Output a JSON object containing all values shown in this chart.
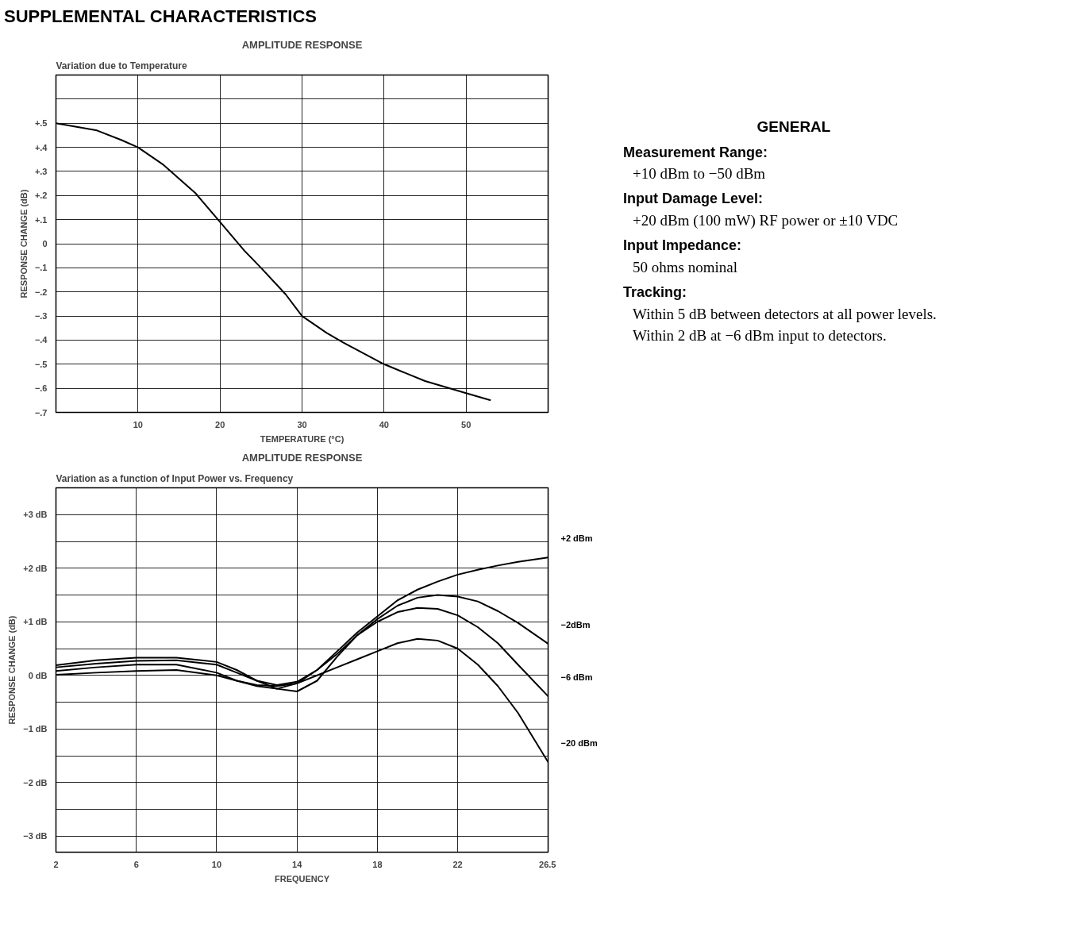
{
  "chart_data": [
    {
      "type": "other",
      "title": "SUPPLEMENTAL CHARACTERISTICS"
    },
    {
      "type": "line",
      "title": "AMPLITUDE RESPONSE",
      "subtitle": "Variation due to Temperature",
      "xlabel": "TEMPERATURE (°C)",
      "ylabel": "RESPONSE CHANGE (dB)",
      "x": [
        0,
        5,
        8,
        10,
        13,
        17,
        20,
        23,
        25,
        28,
        30,
        33,
        35,
        40,
        45,
        50,
        53
      ],
      "series": [
        {
          "color": "#000000",
          "values": [
            0.5,
            0.47,
            0.43,
            0.4,
            0.33,
            0.21,
            0.09,
            -0.03,
            -0.1,
            -0.21,
            -0.3,
            -0.37,
            -0.41,
            -0.5,
            -0.57,
            -0.62,
            -0.65
          ]
        }
      ],
      "xlim": [
        0,
        60
      ],
      "ylim": [
        -0.7,
        0.7
      ],
      "xticks": [
        10,
        20,
        30,
        40,
        50,
        {
          "value": 60,
          "label": null
        }
      ],
      "yticks": [
        {
          "value": 0.7,
          "label": null
        },
        {
          "value": 0.6,
          "label": null
        },
        {
          "value": 0.5,
          "label": "+.5"
        },
        {
          "value": 0.4,
          "label": "+.4"
        },
        {
          "value": 0.3,
          "label": "+.3"
        },
        {
          "value": 0.2,
          "label": "+.2"
        },
        {
          "value": 0.1,
          "label": "+.1"
        },
        0,
        {
          "value": -0.1,
          "label": "−.1"
        },
        {
          "value": -0.2,
          "label": "−.2"
        },
        {
          "value": -0.3,
          "label": "−.3"
        },
        {
          "value": -0.4,
          "label": "−.4"
        },
        {
          "value": -0.5,
          "label": "−.5"
        },
        {
          "value": -0.6,
          "label": "−.6"
        },
        {
          "value": -0.7,
          "label": "−.7"
        }
      ],
      "grid": true
    },
    {
      "type": "other",
      "title": "GENERAL",
      "annotations": [
        "Measurement Range:",
        "+10 dBm to −50 dBm",
        "Input Damage Level:",
        "+20 dBm (100 mW) RF power or ±10 VDC",
        "Input Impedance:",
        "50 ohms nominal",
        "Tracking:",
        "Within 5 dB between detectors at all power levels. Within 2 dB at −6 dBm input to detectors."
      ]
    },
    {
      "type": "line",
      "title": "AMPLITUDE RESPONSE",
      "subtitle": "Variation as a function of Input Power vs. Frequency",
      "xlabel": "FREQUENCY",
      "ylabel": "RESPONSE CHANGE (dB)",
      "x": [
        2,
        4,
        6,
        8,
        10,
        11,
        12,
        13,
        14,
        15,
        16,
        17,
        18,
        19,
        20,
        21,
        22,
        23,
        24,
        25,
        26.5
      ],
      "series": [
        {
          "name": "+2 dBm",
          "color": "#000000",
          "values": [
            0.15,
            0.22,
            0.27,
            0.28,
            0.2,
            0.05,
            -0.1,
            -0.18,
            -0.12,
            0.1,
            0.45,
            0.8,
            1.1,
            1.4,
            1.6,
            1.75,
            1.88,
            1.97,
            2.05,
            2.12,
            2.2
          ]
        },
        {
          "name": "−2dBm",
          "color": "#000000",
          "values": [
            0.19,
            0.28,
            0.33,
            0.33,
            0.25,
            0.1,
            -0.1,
            -0.25,
            -0.3,
            -0.1,
            0.35,
            0.75,
            1.05,
            1.3,
            1.45,
            1.5,
            1.47,
            1.38,
            1.2,
            0.98,
            0.59
          ]
        },
        {
          "name": "−6 dBm",
          "color": "#000000",
          "values": [
            0.08,
            0.15,
            0.2,
            0.2,
            0.05,
            -0.1,
            -0.2,
            -0.25,
            -0.15,
            0.1,
            0.4,
            0.75,
            1.0,
            1.18,
            1.26,
            1.24,
            1.12,
            0.9,
            0.6,
            0.2,
            -0.39
          ]
        },
        {
          "name": "−20 dBm",
          "color": "#000000",
          "values": [
            0.01,
            0.05,
            0.08,
            0.1,
            0.0,
            -0.1,
            -0.18,
            -0.2,
            -0.15,
            0.0,
            0.15,
            0.3,
            0.45,
            0.6,
            0.68,
            0.65,
            0.5,
            0.2,
            -0.2,
            -0.7,
            -1.62
          ]
        }
      ],
      "xlim": [
        2,
        26.5
      ],
      "ylim": [
        -3.3,
        3.5
      ],
      "xticks": [
        2,
        6,
        10,
        14,
        18,
        22,
        26.5
      ],
      "yticks": [
        {
          "value": 3.5,
          "label": null
        },
        {
          "value": 3,
          "label": "+3 dB"
        },
        {
          "value": 2.5,
          "label": null
        },
        {
          "value": 2,
          "label": "+2 dB"
        },
        {
          "value": 1.5,
          "label": null
        },
        {
          "value": 1,
          "label": "+1 dB"
        },
        {
          "value": 0.5,
          "label": null
        },
        {
          "value": 0,
          "label": "0 dB"
        },
        {
          "value": -0.5,
          "label": null
        },
        {
          "value": -1,
          "label": "−1 dB"
        },
        {
          "value": -1.5,
          "label": null
        },
        {
          "value": -2,
          "label": "−2 dB"
        },
        {
          "value": -2.5,
          "label": null
        },
        {
          "value": -3,
          "label": "−3 dB"
        }
      ],
      "grid": true
    }
  ]
}
